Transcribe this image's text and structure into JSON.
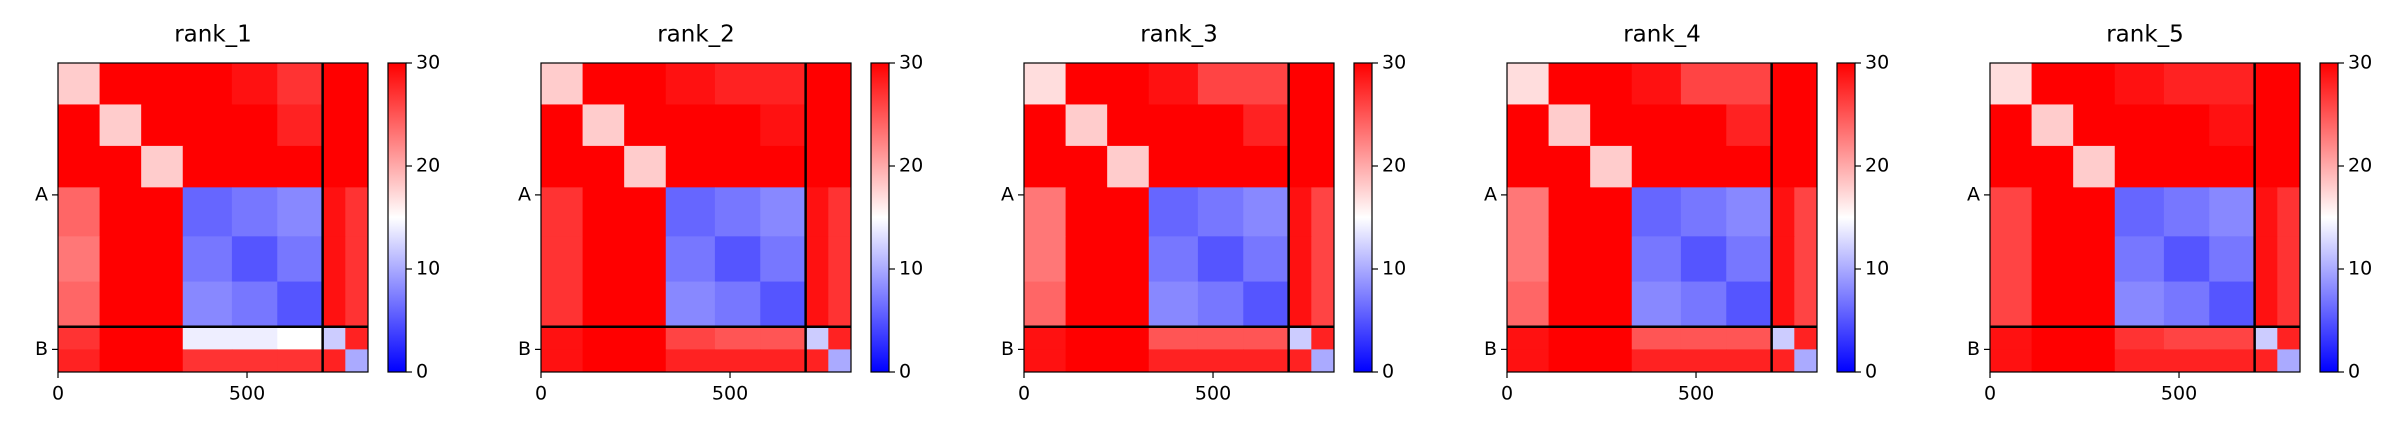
{
  "chart_data": [
    {
      "type": "heatmap",
      "title": "rank_1",
      "edges": [
        0,
        110,
        220,
        330,
        460,
        580,
        700,
        760,
        820
      ],
      "z": [
        [
          18,
          30,
          30,
          30,
          29,
          27,
          30,
          30
        ],
        [
          30,
          18,
          30,
          30,
          30,
          28,
          30,
          30
        ],
        [
          30,
          30,
          18,
          30,
          30,
          30,
          30,
          30
        ],
        [
          24,
          30,
          30,
          6,
          7,
          8,
          29,
          27
        ],
        [
          23,
          30,
          30,
          7,
          5,
          7,
          29,
          27
        ],
        [
          24,
          30,
          30,
          8,
          7,
          5,
          29,
          27
        ],
        [
          27,
          30,
          30,
          14,
          14,
          15,
          12,
          28
        ],
        [
          28,
          30,
          30,
          27,
          27,
          27,
          28,
          10
        ]
      ],
      "xlim": [
        0,
        820
      ],
      "ylim": [
        820,
        0
      ],
      "xticks": [
        0,
        500
      ],
      "yticks": [
        {
          "value": 350,
          "label": "A"
        },
        {
          "value": 760,
          "label": "B"
        }
      ],
      "chain_breaks": [
        700
      ],
      "zlim": [
        0,
        30
      ],
      "zticks": [
        0,
        10,
        20,
        30
      ],
      "colormap": [
        "#0000ff",
        "#ffffff",
        "#ff0000"
      ]
    },
    {
      "type": "heatmap",
      "title": "rank_2",
      "edges": [
        0,
        110,
        220,
        330,
        460,
        580,
        700,
        760,
        820
      ],
      "z": [
        [
          18,
          30,
          30,
          29,
          28,
          28,
          30,
          30
        ],
        [
          30,
          18,
          30,
          30,
          30,
          29,
          30,
          30
        ],
        [
          30,
          30,
          18,
          30,
          30,
          30,
          30,
          30
        ],
        [
          27,
          30,
          30,
          6,
          7,
          8,
          29,
          27
        ],
        [
          27,
          30,
          30,
          7,
          5,
          7,
          29,
          27
        ],
        [
          27,
          30,
          30,
          8,
          7,
          5,
          29,
          27
        ],
        [
          29,
          30,
          30,
          26,
          25,
          25,
          12,
          28
        ],
        [
          29,
          30,
          30,
          28,
          28,
          28,
          28,
          10
        ]
      ],
      "xlim": [
        0,
        820
      ],
      "ylim": [
        820,
        0
      ],
      "xticks": [
        0,
        500
      ],
      "yticks": [
        {
          "value": 350,
          "label": "A"
        },
        {
          "value": 760,
          "label": "B"
        }
      ],
      "chain_breaks": [
        700
      ],
      "zlim": [
        0,
        30
      ],
      "zticks": [
        0,
        10,
        20,
        30
      ],
      "colormap": [
        "#0000ff",
        "#ffffff",
        "#ff0000"
      ]
    },
    {
      "type": "heatmap",
      "title": "rank_3",
      "edges": [
        0,
        110,
        220,
        330,
        460,
        580,
        700,
        760,
        820
      ],
      "z": [
        [
          17,
          30,
          30,
          29,
          26,
          26,
          30,
          30
        ],
        [
          30,
          18,
          30,
          30,
          30,
          28,
          30,
          30
        ],
        [
          30,
          30,
          18,
          30,
          30,
          30,
          30,
          30
        ],
        [
          23,
          30,
          30,
          6,
          7,
          8,
          29,
          26
        ],
        [
          23,
          30,
          30,
          7,
          5,
          7,
          29,
          26
        ],
        [
          24,
          30,
          30,
          8,
          7,
          5,
          29,
          26
        ],
        [
          29,
          30,
          30,
          25,
          25,
          25,
          12,
          28
        ],
        [
          29,
          30,
          30,
          28,
          28,
          28,
          28,
          10
        ]
      ],
      "xlim": [
        0,
        820
      ],
      "ylim": [
        820,
        0
      ],
      "xticks": [
        0,
        500
      ],
      "yticks": [
        {
          "value": 350,
          "label": "A"
        },
        {
          "value": 760,
          "label": "B"
        }
      ],
      "chain_breaks": [
        700
      ],
      "zlim": [
        0,
        30
      ],
      "zticks": [
        0,
        10,
        20,
        30
      ],
      "colormap": [
        "#0000ff",
        "#ffffff",
        "#ff0000"
      ]
    },
    {
      "type": "heatmap",
      "title": "rank_4",
      "edges": [
        0,
        110,
        220,
        330,
        460,
        580,
        700,
        760,
        820
      ],
      "z": [
        [
          17,
          30,
          30,
          29,
          26,
          26,
          30,
          30
        ],
        [
          30,
          18,
          30,
          30,
          30,
          28,
          30,
          30
        ],
        [
          30,
          30,
          18,
          30,
          30,
          30,
          30,
          30
        ],
        [
          23,
          30,
          30,
          6,
          7,
          8,
          29,
          26
        ],
        [
          23,
          30,
          30,
          7,
          5,
          7,
          29,
          26
        ],
        [
          24,
          30,
          30,
          8,
          7,
          5,
          29,
          26
        ],
        [
          29,
          30,
          30,
          25,
          25,
          25,
          12,
          28
        ],
        [
          29,
          30,
          30,
          28,
          28,
          28,
          28,
          10
        ]
      ],
      "xlim": [
        0,
        820
      ],
      "ylim": [
        820,
        0
      ],
      "xticks": [
        0,
        500
      ],
      "yticks": [
        {
          "value": 350,
          "label": "A"
        },
        {
          "value": 760,
          "label": "B"
        }
      ],
      "chain_breaks": [
        700
      ],
      "zlim": [
        0,
        30
      ],
      "zticks": [
        0,
        10,
        20,
        30
      ],
      "colormap": [
        "#0000ff",
        "#ffffff",
        "#ff0000"
      ]
    },
    {
      "type": "heatmap",
      "title": "rank_5",
      "edges": [
        0,
        110,
        220,
        330,
        460,
        580,
        700,
        760,
        820
      ],
      "z": [
        [
          17,
          30,
          30,
          29,
          28,
          28,
          30,
          30
        ],
        [
          30,
          18,
          30,
          30,
          30,
          29,
          30,
          30
        ],
        [
          30,
          30,
          18,
          30,
          30,
          30,
          30,
          30
        ],
        [
          26,
          30,
          30,
          6,
          7,
          8,
          29,
          27
        ],
        [
          26,
          30,
          30,
          7,
          5,
          7,
          29,
          27
        ],
        [
          26,
          30,
          30,
          8,
          7,
          5,
          29,
          27
        ],
        [
          29,
          30,
          30,
          27,
          26,
          26,
          12,
          28
        ],
        [
          29,
          30,
          30,
          28,
          28,
          28,
          28,
          10
        ]
      ],
      "xlim": [
        0,
        820
      ],
      "ylim": [
        820,
        0
      ],
      "xticks": [
        0,
        500
      ],
      "yticks": [
        {
          "value": 350,
          "label": "A"
        },
        {
          "value": 760,
          "label": "B"
        }
      ],
      "chain_breaks": [
        700
      ],
      "zlim": [
        0,
        30
      ],
      "zticks": [
        0,
        10,
        20,
        30
      ],
      "colormap": [
        "#0000ff",
        "#ffffff",
        "#ff0000"
      ]
    }
  ]
}
